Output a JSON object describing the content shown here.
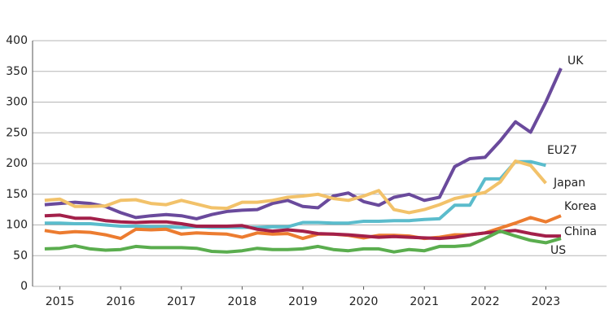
{
  "chart_data": {
    "type": "line",
    "x": [
      2014.75,
      2015,
      2015.25,
      2015.5,
      2015.75,
      2016,
      2016.25,
      2016.5,
      2016.75,
      2017,
      2017.25,
      2017.5,
      2017.75,
      2018,
      2018.25,
      2018.5,
      2018.75,
      2019,
      2019.25,
      2019.5,
      2019.75,
      2020,
      2020.25,
      2020.5,
      2020.75,
      2021,
      2021.25,
      2021.5,
      2021.75,
      2022,
      2022.25,
      2022.5,
      2022.75,
      2023,
      2023.25
    ],
    "series": [
      {
        "name": "UK",
        "color": "#6a4a9c",
        "values": [
          133,
          135,
          137,
          135,
          130,
          120,
          112,
          115,
          117,
          115,
          110,
          117,
          122,
          124,
          125,
          135,
          140,
          130,
          128,
          147,
          152,
          138,
          132,
          145,
          150,
          140,
          145,
          195,
          208,
          210,
          237,
          268,
          251,
          300,
          355
        ]
      },
      {
        "name": "EU27",
        "color": "#5bbccc",
        "values": [
          103,
          103,
          102,
          102,
          100,
          98,
          98,
          97,
          97,
          96,
          97,
          96,
          96,
          96,
          96,
          97,
          97,
          104,
          104,
          103,
          103,
          106,
          106,
          107,
          107,
          109,
          110,
          132,
          132,
          175,
          175,
          203,
          203,
          197,
          null
        ]
      },
      {
        "name": "Japan",
        "color": "#f2c26a",
        "values": [
          140,
          142,
          130,
          130,
          131,
          140,
          141,
          135,
          133,
          140,
          134,
          128,
          127,
          137,
          137,
          140,
          145,
          147,
          150,
          143,
          140,
          147,
          156,
          125,
          120,
          125,
          133,
          143,
          148,
          153,
          170,
          204,
          197,
          168,
          null
        ]
      },
      {
        "name": "Korea",
        "color": "#ec7c30",
        "values": [
          91,
          87,
          89,
          88,
          84,
          78,
          93,
          92,
          93,
          85,
          87,
          86,
          85,
          80,
          87,
          85,
          86,
          78,
          85,
          85,
          83,
          79,
          83,
          83,
          82,
          78,
          80,
          84,
          84,
          87,
          95,
          103,
          112,
          105,
          115
        ]
      },
      {
        "name": "China",
        "color": "#a3204a",
        "values": [
          115,
          116,
          111,
          111,
          107,
          105,
          104,
          105,
          105,
          102,
          98,
          98,
          98,
          99,
          93,
          90,
          92,
          90,
          86,
          85,
          84,
          82,
          80,
          81,
          80,
          79,
          78,
          80,
          84,
          87,
          89,
          91,
          86,
          82,
          82
        ]
      },
      {
        "name": "US",
        "color": "#5aad4e",
        "values": [
          61,
          62,
          66,
          61,
          59,
          60,
          65,
          63,
          63,
          63,
          62,
          57,
          56,
          58,
          62,
          60,
          60,
          61,
          65,
          60,
          58,
          61,
          61,
          56,
          60,
          58,
          65,
          65,
          67,
          78,
          90,
          82,
          75,
          71,
          78
        ]
      }
    ],
    "xlim": [
      2014.55,
      2024.0
    ],
    "xticks": [
      2015,
      2016,
      2017,
      2018,
      2019,
      2020,
      2021,
      2022,
      2023
    ],
    "ylim": [
      0,
      400
    ],
    "yticks": [
      0,
      50,
      100,
      150,
      200,
      250,
      300,
      350,
      400
    ],
    "grid": true
  }
}
